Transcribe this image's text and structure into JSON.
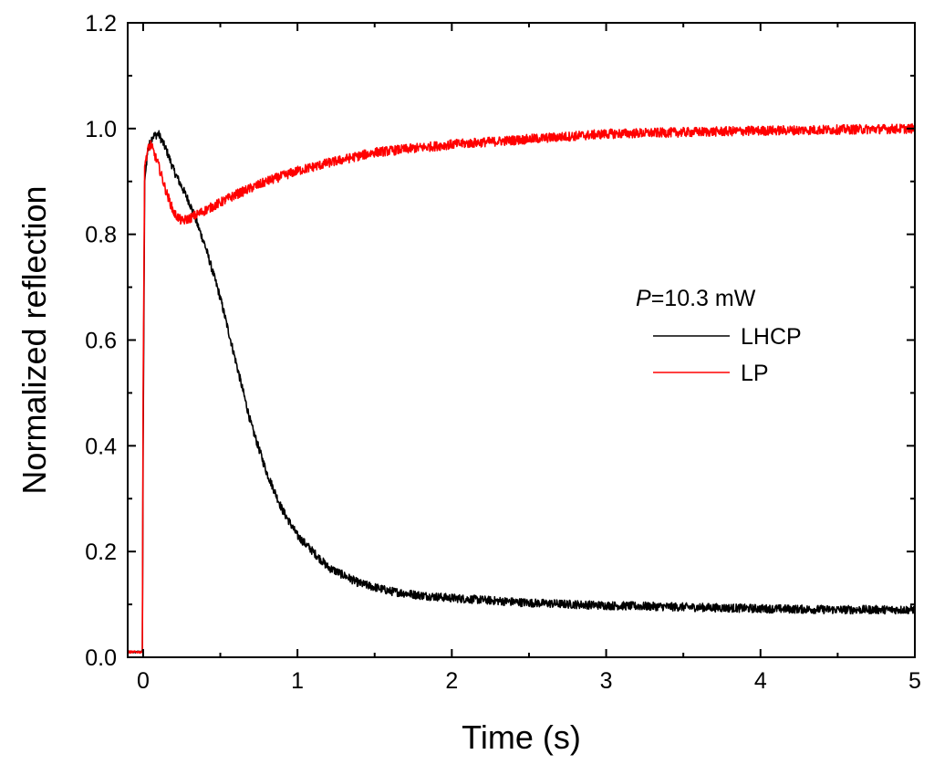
{
  "chart_data": {
    "type": "line",
    "title": "",
    "xlabel": "Time (s)",
    "ylabel": "Normalized reflection",
    "xlim": [
      -0.1,
      5
    ],
    "ylim": [
      0,
      1.2
    ],
    "xticks": [
      0,
      1,
      2,
      3,
      4,
      5
    ],
    "xtick_labels": [
      "0",
      "1",
      "2",
      "3",
      "4",
      "5"
    ],
    "yticks": [
      0.0,
      0.2,
      0.4,
      0.6,
      0.8,
      1.0,
      1.2
    ],
    "ytick_labels": [
      "0.0",
      "0.2",
      "0.4",
      "0.6",
      "0.8",
      "1.0",
      "1.2"
    ],
    "grid": false,
    "legend_position": "center-right",
    "legend_title_italic": "P",
    "legend_title_rest": "=10.3 mW",
    "series": [
      {
        "name": "LHCP",
        "color": "#000000",
        "noise": 0.008,
        "x": [
          -0.1,
          -0.01,
          -0.005,
          0.0,
          0.01,
          0.03,
          0.06,
          0.1,
          0.15,
          0.2,
          0.3,
          0.4,
          0.5,
          0.6,
          0.7,
          0.8,
          0.9,
          1.0,
          1.1,
          1.2,
          1.4,
          1.6,
          1.8,
          2.0,
          2.5,
          3.0,
          3.5,
          4.0,
          4.5,
          5.0
        ],
        "y": [
          0.01,
          0.01,
          0.01,
          0.4,
          0.9,
          0.96,
          0.985,
          0.99,
          0.96,
          0.92,
          0.86,
          0.78,
          0.68,
          0.56,
          0.44,
          0.35,
          0.28,
          0.23,
          0.2,
          0.17,
          0.14,
          0.125,
          0.117,
          0.112,
          0.103,
          0.098,
          0.095,
          0.092,
          0.09,
          0.09
        ]
      },
      {
        "name": "LP",
        "color": "#ff0000",
        "noise": 0.009,
        "x": [
          -0.1,
          -0.01,
          -0.005,
          0.0,
          0.01,
          0.03,
          0.05,
          0.1,
          0.15,
          0.2,
          0.25,
          0.3,
          0.4,
          0.5,
          0.6,
          0.8,
          1.0,
          1.2,
          1.5,
          2.0,
          2.5,
          3.0,
          3.5,
          4.0,
          4.5,
          5.0
        ],
        "y": [
          0.01,
          0.01,
          0.01,
          0.5,
          0.93,
          0.96,
          0.97,
          0.93,
          0.88,
          0.84,
          0.825,
          0.83,
          0.845,
          0.86,
          0.875,
          0.9,
          0.92,
          0.935,
          0.955,
          0.97,
          0.98,
          0.99,
          0.993,
          0.996,
          0.998,
          1.0
        ]
      }
    ]
  }
}
